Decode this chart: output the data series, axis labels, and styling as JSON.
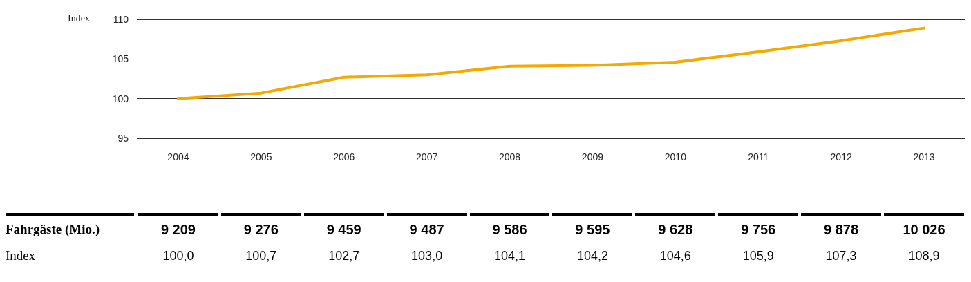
{
  "chart_data": [
    {
      "type": "line",
      "ylabel": "Index",
      "categories": [
        "2004",
        "2005",
        "2006",
        "2007",
        "2008",
        "2009",
        "2010",
        "2011",
        "2012",
        "2013"
      ],
      "series": [
        {
          "name": "Index",
          "color": "#f5a800",
          "values": [
            100.0,
            100.7,
            102.7,
            103.0,
            104.1,
            104.2,
            104.6,
            105.9,
            107.3,
            108.9
          ],
          "value_labels": [
            "100,0",
            "100,7",
            "102,7",
            "103,0",
            "104,1",
            "104,2",
            "104,6",
            "105,9",
            "107,3",
            "108,9"
          ]
        }
      ],
      "ylim": [
        95,
        110
      ],
      "yticks": [
        95,
        100,
        105,
        110
      ],
      "grid": "y",
      "line_style": "solid",
      "marker": "none"
    },
    {
      "type": "other",
      "categories": [
        null,
        null,
        null,
        null,
        null,
        null,
        null,
        null,
        null,
        null
      ],
      "series": [
        {
          "name": "Fahrgäste (Mio.)",
          "values": [
            9209,
            9276,
            9459,
            9487,
            9586,
            9595,
            9628,
            9756,
            9878,
            10026
          ],
          "value_labels": [
            "9 209",
            "9 276",
            "9 459",
            "9 487",
            "9 586",
            "9 595",
            "9 628",
            "9 756",
            "9 878",
            "10 026"
          ]
        }
      ]
    }
  ]
}
